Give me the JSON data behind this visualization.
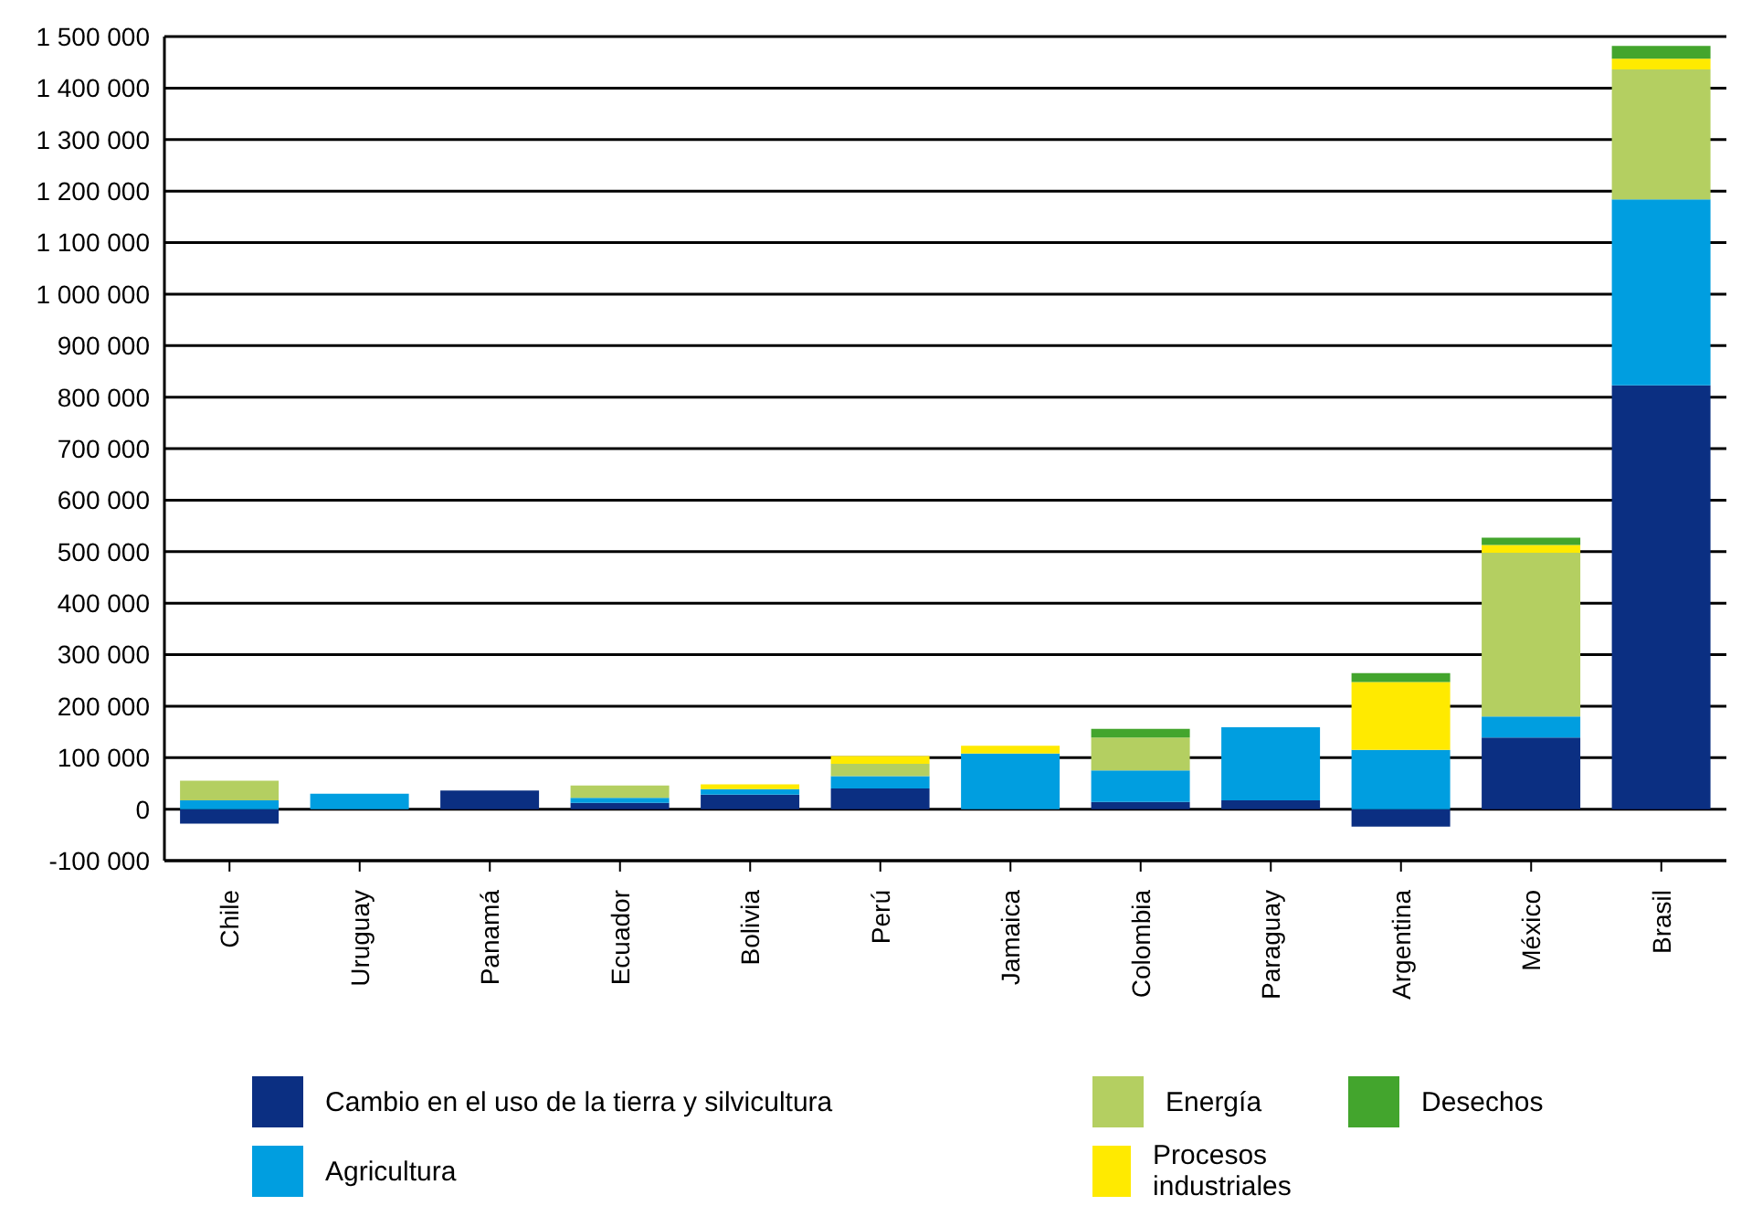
{
  "chart_data": {
    "type": "bar",
    "stacked": true,
    "categories": [
      "Chile",
      "Uruguay",
      "Panamá",
      "Ecuador",
      "Bolivia",
      "Perú",
      "Jamaica",
      "Colombia",
      "Paraguay",
      "Argentina",
      "México",
      "Brasil"
    ],
    "series": [
      {
        "name": "Cambio en el uso de la tierra y silvicultura",
        "color": "#0b2f82",
        "values": [
          -28000,
          null,
          36000,
          12000,
          28000,
          40000,
          null,
          14000,
          17000,
          -34000,
          139000,
          823000
        ]
      },
      {
        "name": "Agricultura",
        "color": "#009ee0",
        "values": [
          17000,
          30000,
          null,
          10000,
          11000,
          24000,
          108000,
          61000,
          142000,
          115000,
          41000,
          361000
        ]
      },
      {
        "name": "Energía",
        "color": "#b4cf61",
        "values": [
          38000,
          null,
          null,
          24000,
          null,
          24000,
          null,
          64000,
          null,
          null,
          318000,
          252000
        ]
      },
      {
        "name": "Procesos industriales",
        "color": "#ffea00",
        "values": [
          null,
          null,
          null,
          null,
          9000,
          15000,
          15000,
          null,
          null,
          132000,
          15000,
          21000
        ]
      },
      {
        "name": "Desechos",
        "color": "#43a52d",
        "values": [
          null,
          null,
          null,
          null,
          null,
          null,
          null,
          17000,
          null,
          17000,
          14000,
          25000
        ]
      }
    ],
    "ylim": [
      -100000,
      1500000
    ],
    "yticks": [
      {
        "value": -100000,
        "label": "-100 000"
      },
      {
        "value": 0,
        "label": "0"
      },
      {
        "value": 100000,
        "label": "100 000"
      },
      {
        "value": 200000,
        "label": "200 000"
      },
      {
        "value": 300000,
        "label": "300 000"
      },
      {
        "value": 400000,
        "label": "400 000"
      },
      {
        "value": 500000,
        "label": "500 000"
      },
      {
        "value": 600000,
        "label": "600 000"
      },
      {
        "value": 700000,
        "label": "700 000"
      },
      {
        "value": 800000,
        "label": "800 000"
      },
      {
        "value": 900000,
        "label": "900 000"
      },
      {
        "value": 1000000,
        "label": "1 000 000"
      },
      {
        "value": 1100000,
        "label": "1 100 000"
      },
      {
        "value": 1200000,
        "label": "1 200 000"
      },
      {
        "value": 1300000,
        "label": "1 300 000"
      },
      {
        "value": 1400000,
        "label": "1 400 000"
      },
      {
        "value": 1500000,
        "label": "1 500 000"
      }
    ],
    "grid": "y",
    "legend": "bottom"
  }
}
